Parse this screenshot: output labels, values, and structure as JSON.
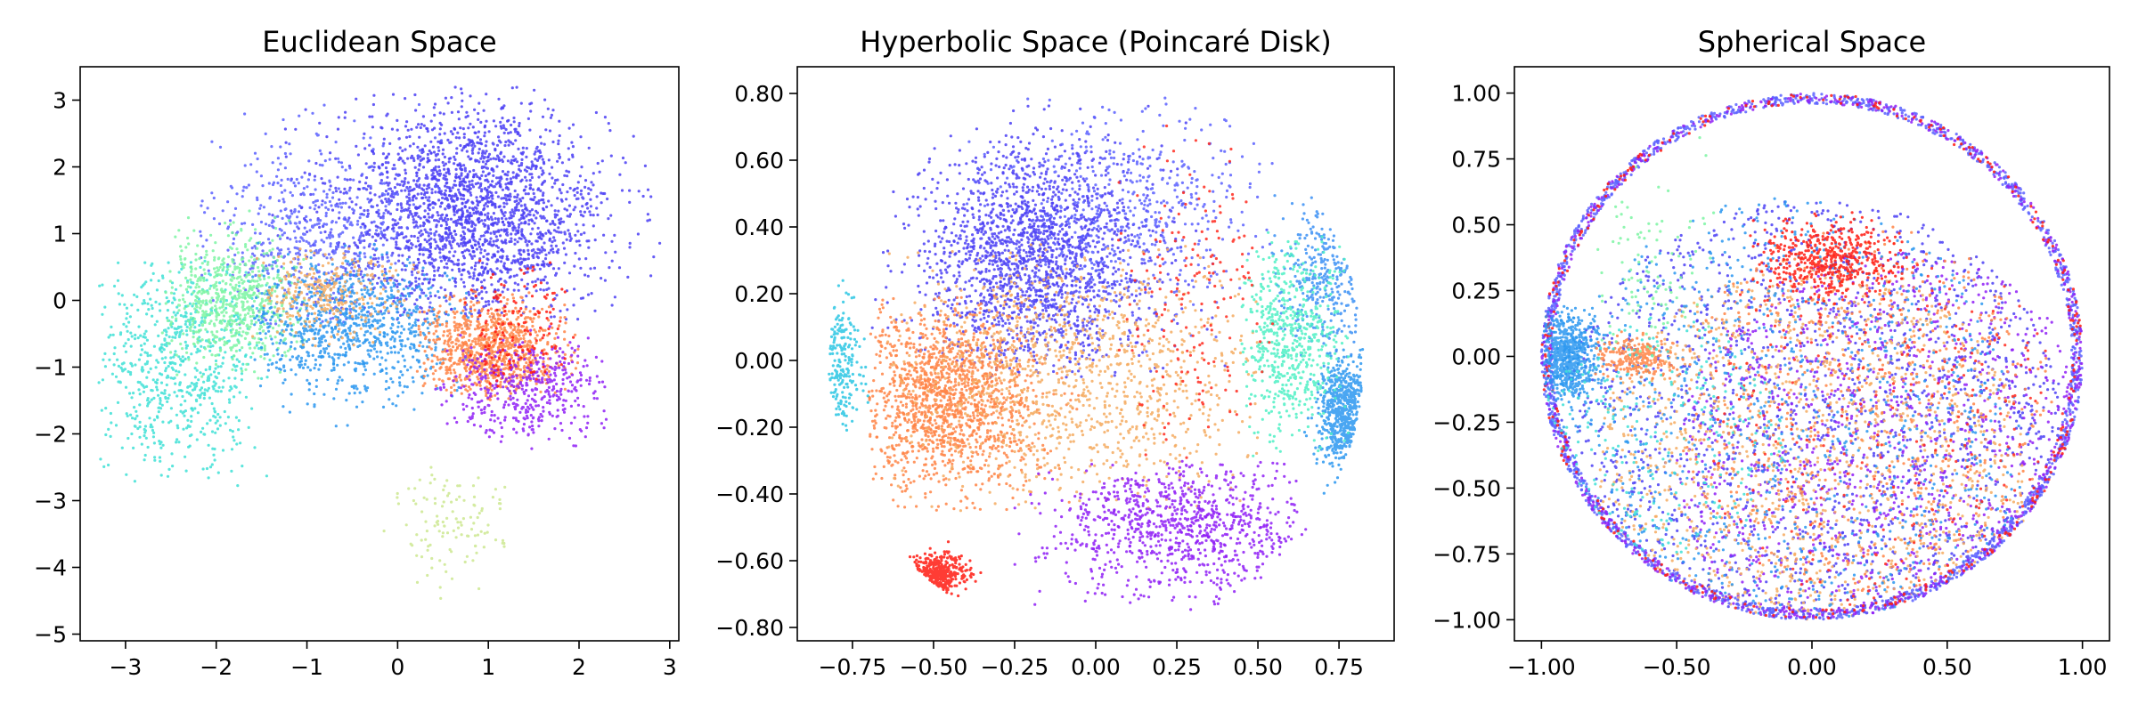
{
  "figure": {
    "panels": [
      "Euclidean Space",
      "Hyperbolic Space (Poincaré Disk)",
      "Spherical Space"
    ]
  },
  "chart_data": [
    {
      "type": "scatter",
      "title": "Euclidean Space",
      "xlabel": "",
      "ylabel": "",
      "xlim": [
        -3.5,
        3.1
      ],
      "ylim": [
        -5.1,
        3.5
      ],
      "xticks": [
        -3,
        -2,
        -1,
        0,
        1,
        2,
        3
      ],
      "yticks": [
        -5,
        -4,
        -3,
        -2,
        -1,
        0,
        1,
        2,
        3
      ],
      "grid": false,
      "legend": "none",
      "clusters": [
        {
          "color": "#4b3ff5",
          "center": [
            0.8,
            1.3
          ],
          "spread": [
            0.75,
            0.8
          ],
          "count": 2200,
          "range": [
            [
              -2.1,
              2.9
            ],
            [
              -0.3,
              3.2
            ]
          ]
        },
        {
          "color": "#5b60ff",
          "center": [
            -0.9,
            1.0
          ],
          "spread": [
            0.6,
            0.7
          ],
          "count": 600,
          "range": [
            [
              -2.2,
              0.5
            ],
            [
              -0.5,
              3.1
            ]
          ]
        },
        {
          "color": "#3ee0d6",
          "center": [
            -2.4,
            -0.9
          ],
          "spread": [
            0.45,
            0.8
          ],
          "count": 700,
          "range": [
            [
              -3.3,
              -1.4
            ],
            [
              -2.8,
              0.6
            ]
          ]
        },
        {
          "color": "#7cf5a3",
          "center": [
            -1.8,
            0.0
          ],
          "spread": [
            0.4,
            0.45
          ],
          "count": 650,
          "range": [
            [
              -2.6,
              -1.0
            ],
            [
              -1.2,
              1.5
            ]
          ]
        },
        {
          "color": "#2a96f0",
          "center": [
            -0.5,
            -0.4
          ],
          "spread": [
            0.55,
            0.5
          ],
          "count": 900,
          "range": [
            [
              -1.6,
              0.8
            ],
            [
              -2.5,
              1.0
            ]
          ]
        },
        {
          "color": "#f4ac62",
          "center": [
            -0.8,
            0.1
          ],
          "spread": [
            0.4,
            0.35
          ],
          "count": 300,
          "range": [
            [
              -1.6,
              0.3
            ],
            [
              -0.8,
              0.8
            ]
          ]
        },
        {
          "color": "#ff8445",
          "center": [
            1.0,
            -0.75
          ],
          "spread": [
            0.4,
            0.35
          ],
          "count": 900,
          "range": [
            [
              0.2,
              2.0
            ],
            [
              -1.5,
              0.2
            ]
          ]
        },
        {
          "color": "#8f1ef6",
          "center": [
            1.4,
            -1.3
          ],
          "spread": [
            0.45,
            0.35
          ],
          "count": 450,
          "range": [
            [
              0.4,
              2.3
            ],
            [
              -2.4,
              -0.3
            ]
          ]
        },
        {
          "color": "#ff1a10",
          "center": [
            1.3,
            -0.4
          ],
          "spread": [
            0.3,
            0.45
          ],
          "count": 150,
          "range": [
            [
              0.7,
              2.4
            ],
            [
              -1.3,
              0.6
            ]
          ]
        },
        {
          "color": "#cde891",
          "center": [
            0.6,
            -3.3
          ],
          "spread": [
            0.3,
            0.45
          ],
          "count": 120,
          "range": [
            [
              -0.2,
              1.6
            ],
            [
              -4.6,
              -2.5
            ]
          ]
        }
      ]
    },
    {
      "type": "scatter",
      "title": "Hyperbolic Space (Poincaré Disk)",
      "xlabel": "",
      "ylabel": "",
      "xlim": [
        -0.92,
        0.92
      ],
      "ylim": [
        -0.84,
        0.88
      ],
      "xticks": [
        -0.75,
        -0.5,
        -0.25,
        0.0,
        0.25,
        0.5,
        0.75
      ],
      "yticks": [
        -0.8,
        -0.6,
        -0.4,
        -0.2,
        0.0,
        0.2,
        0.4,
        0.6,
        0.8
      ],
      "grid": false,
      "legend": "none",
      "clusters": [
        {
          "color": "#4b3ff5",
          "center": [
            -0.2,
            0.3
          ],
          "spread": [
            0.18,
            0.18
          ],
          "count": 1900,
          "range": [
            [
              -0.7,
              0.45
            ],
            [
              -0.05,
              0.78
            ]
          ]
        },
        {
          "color": "#5b60ff",
          "center": [
            0.1,
            0.45
          ],
          "spread": [
            0.2,
            0.15
          ],
          "count": 500,
          "range": [
            [
              -0.4,
              0.55
            ],
            [
              0.0,
              0.8
            ]
          ]
        },
        {
          "color": "#ff8445",
          "center": [
            -0.45,
            -0.12
          ],
          "spread": [
            0.14,
            0.14
          ],
          "count": 1500,
          "range": [
            [
              -0.7,
              -0.05
            ],
            [
              -0.45,
              0.2
            ]
          ]
        },
        {
          "color": "#f4ac62",
          "center": [
            -0.05,
            -0.05
          ],
          "spread": [
            0.3,
            0.18
          ],
          "count": 1100,
          "range": [
            [
              -0.65,
              0.5
            ],
            [
              -0.45,
              0.35
            ]
          ]
        },
        {
          "color": "#8f1ef6",
          "center": [
            0.25,
            -0.5
          ],
          "spread": [
            0.2,
            0.1
          ],
          "count": 900,
          "range": [
            [
              -0.25,
              0.65
            ],
            [
              -0.75,
              -0.3
            ]
          ]
        },
        {
          "color": "#2a96f0",
          "center": [
            0.76,
            -0.15
          ],
          "spread": [
            0.04,
            0.08
          ],
          "count": 600,
          "range": [
            [
              0.6,
              0.83
            ],
            [
              -0.4,
              0.05
            ]
          ]
        },
        {
          "color": "#3a8ff5",
          "center": [
            0.7,
            0.25
          ],
          "spread": [
            0.07,
            0.12
          ],
          "count": 300,
          "range": [
            [
              0.5,
              0.83
            ],
            [
              0.0,
              0.5
            ]
          ]
        },
        {
          "color": "#4df0c4",
          "center": [
            0.6,
            0.05
          ],
          "spread": [
            0.08,
            0.15
          ],
          "count": 600,
          "range": [
            [
              0.45,
              0.78
            ],
            [
              -0.3,
              0.4
            ]
          ]
        },
        {
          "color": "#ff1a10",
          "center": [
            -0.5,
            -0.64
          ],
          "spread": [
            0.05,
            0.03
          ],
          "count": 350,
          "range": [
            [
              -0.65,
              -0.35
            ],
            [
              -0.74,
              -0.52
            ]
          ]
        },
        {
          "color": "#ff2a1e",
          "center": [
            0.3,
            0.2
          ],
          "spread": [
            0.12,
            0.25
          ],
          "count": 180,
          "range": [
            [
              0.05,
              0.55
            ],
            [
              -0.3,
              0.75
            ]
          ]
        },
        {
          "color": "#29c5e3",
          "center": [
            -0.78,
            0.0
          ],
          "spread": [
            0.03,
            0.1
          ],
          "count": 200,
          "range": [
            [
              -0.85,
              -0.7
            ],
            [
              -0.25,
              0.25
            ]
          ]
        }
      ]
    },
    {
      "type": "scatter",
      "title": "Spherical Space",
      "xlabel": "",
      "ylabel": "",
      "xlim": [
        -1.1,
        1.1
      ],
      "ylim": [
        -1.08,
        1.1
      ],
      "xticks": [
        -1.0,
        -0.5,
        0.0,
        0.5,
        1.0
      ],
      "yticks": [
        -1.0,
        -0.75,
        -0.5,
        -0.25,
        0.0,
        0.25,
        0.5,
        0.75,
        1.0
      ],
      "grid": false,
      "legend": "none",
      "clusters": [
        {
          "color": "#4b3ff5",
          "disk": [
            0.0,
            -0.35,
            0.95
          ],
          "count": 1700
        },
        {
          "color": "#8f1ef6",
          "disk": [
            0.3,
            -0.4,
            0.8
          ],
          "count": 1100
        },
        {
          "color": "#f4ac62",
          "disk": [
            0.0,
            -0.45,
            0.8
          ],
          "count": 1200
        },
        {
          "color": "#ff8445",
          "disk": [
            0.2,
            -0.2,
            0.7
          ],
          "count": 600
        },
        {
          "color": "#2a96f0",
          "disk": [
            -0.1,
            -0.3,
            0.9
          ],
          "count": 900
        },
        {
          "color": "#5b60ff",
          "ring": [
            0.96,
            1.0
          ],
          "count": 1500
        },
        {
          "color": "#8f1ef6",
          "ring": [
            0.96,
            1.0
          ],
          "count": 600
        },
        {
          "color": "#ff1a10",
          "ring": [
            0.96,
            1.0
          ],
          "count": 300
        },
        {
          "color": "#ff1a10",
          "center": [
            0.05,
            0.37
          ],
          "spread": [
            0.12,
            0.07
          ],
          "count": 500,
          "range": [
            [
              -0.3,
              0.35
            ],
            [
              0.2,
              0.6
            ]
          ]
        },
        {
          "color": "#ff2a1e",
          "disk": [
            0.3,
            -0.3,
            0.7
          ],
          "count": 300
        },
        {
          "color": "#2a96f0",
          "center": [
            -0.9,
            0.0
          ],
          "spread": [
            0.05,
            0.08
          ],
          "count": 700,
          "range": [
            [
              -0.99,
              -0.75
            ],
            [
              -0.25,
              0.2
            ]
          ]
        },
        {
          "color": "#ff8445",
          "center": [
            -0.65,
            0.0
          ],
          "spread": [
            0.08,
            0.04
          ],
          "count": 250,
          "range": [
            [
              -0.8,
              -0.45
            ],
            [
              -0.1,
              0.1
            ]
          ]
        },
        {
          "color": "#3ee0d6",
          "disk": [
            -0.55,
            -0.3,
            0.45
          ],
          "count": 250
        },
        {
          "color": "#7cf5a3",
          "center": [
            -0.6,
            0.3
          ],
          "spread": [
            0.1,
            0.2
          ],
          "count": 100,
          "range": [
            [
              -0.8,
              -0.3
            ],
            [
              0.0,
              0.92
            ]
          ]
        }
      ]
    }
  ]
}
